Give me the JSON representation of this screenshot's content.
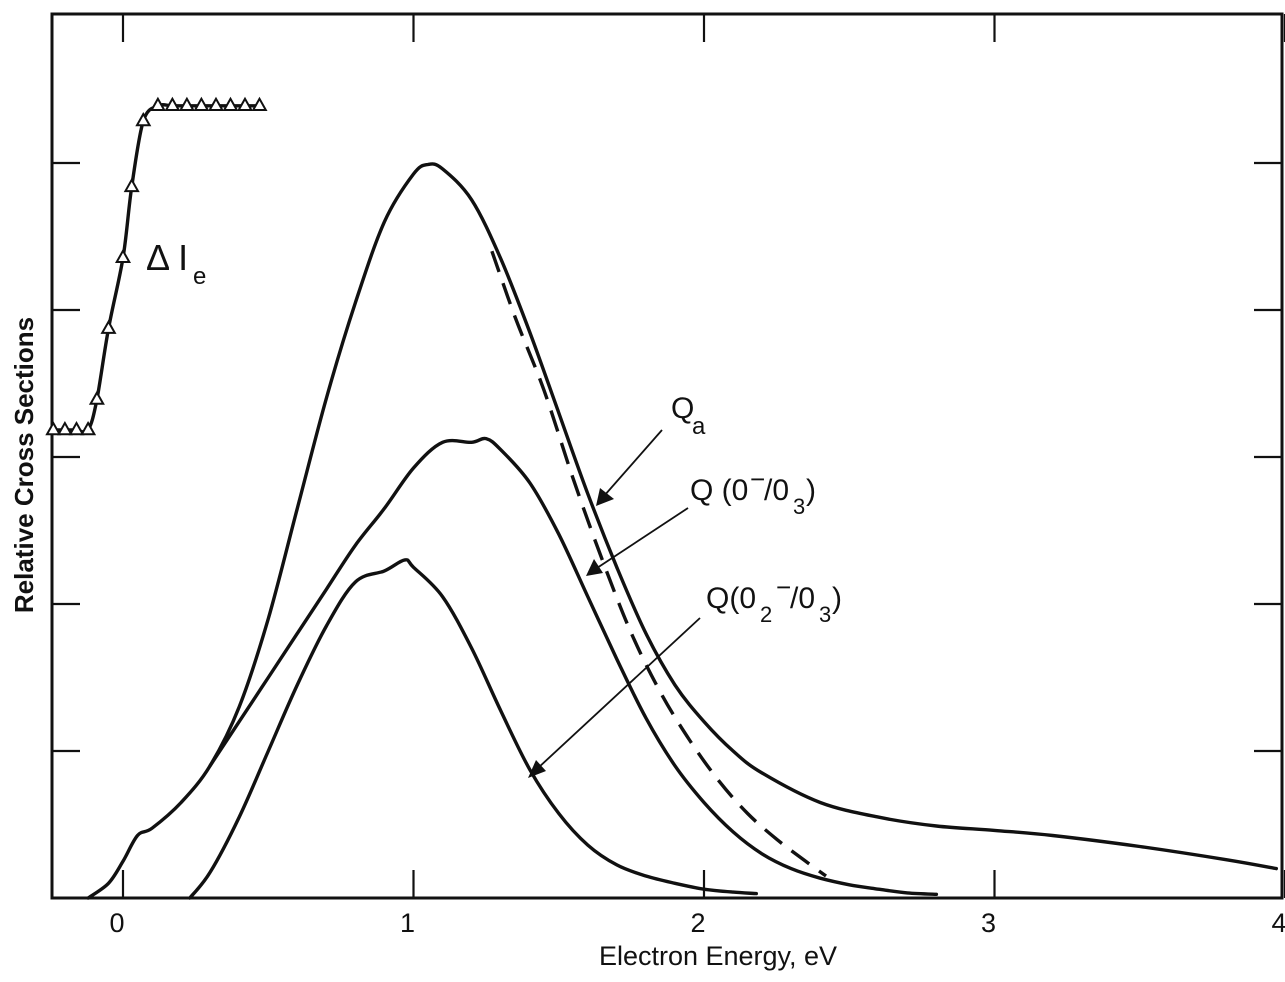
{
  "chart_data": {
    "type": "line",
    "title": "",
    "xlabel": "Electron Energy, eV",
    "ylabel": "Relative Cross Sections",
    "xlim": [
      -0.25,
      4.0
    ],
    "ylim": [
      0,
      10
    ],
    "x_ticks": [
      0,
      1,
      2,
      3,
      4
    ],
    "x_tick_labels": [
      "0",
      "1",
      "2",
      "3",
      "4"
    ],
    "y_ticks": [
      2,
      4,
      6,
      8,
      10
    ],
    "grid": false,
    "legend": "none",
    "series": [
      {
        "name": "Q_a",
        "style": "solid",
        "x": [
          -0.12,
          -0.05,
          0.0,
          0.05,
          0.1,
          0.2,
          0.3,
          0.4,
          0.5,
          0.6,
          0.7,
          0.8,
          0.9,
          1.0,
          1.05,
          1.1,
          1.2,
          1.3,
          1.4,
          1.5,
          1.6,
          1.7,
          1.8,
          1.9,
          2.0,
          2.1,
          2.2,
          2.4,
          2.6,
          2.8,
          3.0,
          3.2,
          3.5,
          3.8,
          3.97
        ],
        "y": [
          0.0,
          0.2,
          0.5,
          0.85,
          0.95,
          1.3,
          1.8,
          2.6,
          3.8,
          5.3,
          6.8,
          8.1,
          9.2,
          9.85,
          9.98,
          9.92,
          9.5,
          8.7,
          7.7,
          6.6,
          5.5,
          4.5,
          3.6,
          2.9,
          2.4,
          2.0,
          1.7,
          1.3,
          1.1,
          0.98,
          0.92,
          0.85,
          0.7,
          0.52,
          0.4
        ]
      },
      {
        "name": "Q (0⁻/0₃)",
        "style": "solid",
        "x": [
          0.3,
          0.4,
          0.5,
          0.6,
          0.7,
          0.8,
          0.9,
          1.0,
          1.1,
          1.2,
          1.25,
          1.3,
          1.4,
          1.5,
          1.6,
          1.7,
          1.8,
          1.9,
          2.0,
          2.1,
          2.2,
          2.3,
          2.4,
          2.5,
          2.6,
          2.7,
          2.8
        ],
        "y": [
          1.8,
          2.4,
          3.0,
          3.6,
          4.2,
          4.8,
          5.3,
          5.85,
          6.2,
          6.2,
          6.25,
          6.1,
          5.65,
          4.95,
          4.1,
          3.25,
          2.45,
          1.8,
          1.3,
          0.9,
          0.6,
          0.4,
          0.27,
          0.18,
          0.12,
          0.07,
          0.05
        ]
      },
      {
        "name": "Q(0₂⁻/0₃)",
        "style": "solid",
        "x": [
          0.23,
          0.3,
          0.4,
          0.5,
          0.6,
          0.7,
          0.8,
          0.9,
          0.97,
          1.0,
          1.1,
          1.2,
          1.3,
          1.4,
          1.5,
          1.6,
          1.7,
          1.8,
          1.9,
          2.0,
          2.1,
          2.18
        ],
        "y": [
          0.0,
          0.35,
          1.1,
          2.0,
          2.9,
          3.7,
          4.3,
          4.45,
          4.6,
          4.5,
          4.1,
          3.4,
          2.55,
          1.75,
          1.15,
          0.72,
          0.45,
          0.3,
          0.2,
          0.12,
          0.08,
          0.06
        ]
      },
      {
        "name": "",
        "style": "dashed",
        "x": [
          1.27,
          1.35,
          1.45,
          1.55,
          1.65,
          1.75,
          1.85,
          1.95,
          2.05,
          2.15,
          2.25,
          2.35,
          2.42
        ],
        "y": [
          8.8,
          7.9,
          6.9,
          5.7,
          4.6,
          3.6,
          2.8,
          2.15,
          1.6,
          1.15,
          0.8,
          0.5,
          0.3
        ]
      },
      {
        "name": "ΔI_e",
        "style": "solid-with-triangles",
        "x": [
          -0.24,
          -0.2,
          -0.16,
          -0.12,
          -0.09,
          -0.05,
          0.0,
          0.03,
          0.07,
          0.12,
          0.17,
          0.22,
          0.27,
          0.32,
          0.37,
          0.42,
          0.47
        ],
        "y": [
          6.4,
          6.4,
          6.4,
          6.4,
          6.7,
          7.4,
          8.1,
          8.8,
          9.45,
          9.6,
          9.6,
          9.6,
          9.6,
          9.6,
          9.6,
          9.6,
          9.6
        ],
        "y_axis": "offset"
      }
    ],
    "annotations": [
      {
        "text": "Q",
        "subscript": "a"
      },
      {
        "text": "Q (0",
        "superscript": "−",
        "mid": "/0",
        "subscript": "3",
        "end": ")"
      },
      {
        "text": "Q(0",
        "subscript": "2",
        "superscript": "−",
        "mid": "/0",
        "subscript2": "3",
        "end": ")"
      },
      {
        "text": "Δ I",
        "subscript": "e"
      }
    ]
  }
}
